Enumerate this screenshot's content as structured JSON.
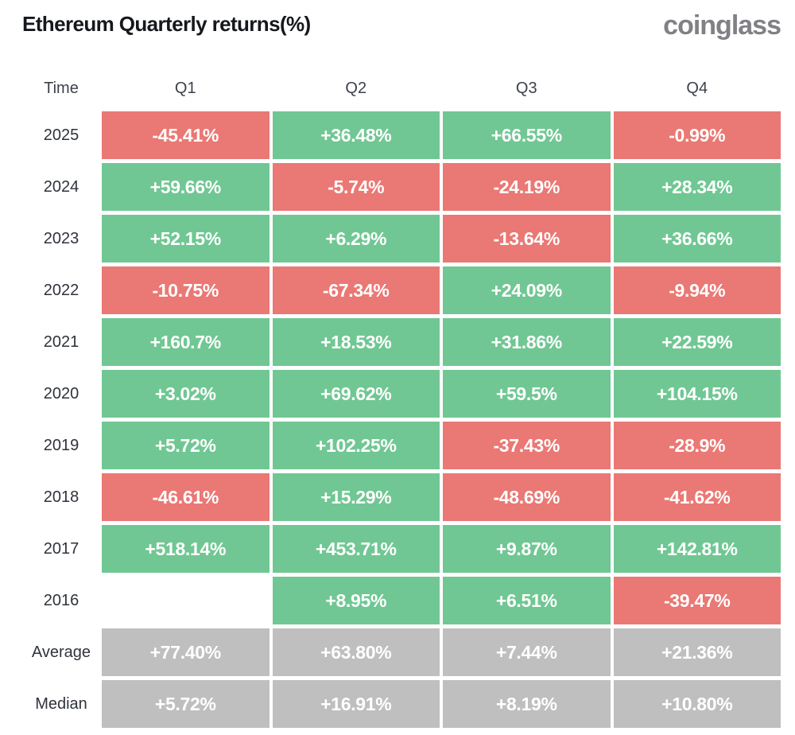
{
  "header": {
    "title": "Ethereum Quarterly returns(%)",
    "logo": "coinglass"
  },
  "colors": {
    "positive": "#70C793",
    "negative": "#EA7874",
    "summary": "#BFBFBF"
  },
  "table": {
    "columns": [
      "Time",
      "Q1",
      "Q2",
      "Q3",
      "Q4"
    ],
    "rows": [
      {
        "label": "2025",
        "cells": [
          {
            "text": "-45.41%",
            "tone": "negative"
          },
          {
            "text": "+36.48%",
            "tone": "positive"
          },
          {
            "text": "+66.55%",
            "tone": "positive"
          },
          {
            "text": "-0.99%",
            "tone": "negative"
          }
        ]
      },
      {
        "label": "2024",
        "cells": [
          {
            "text": "+59.66%",
            "tone": "positive"
          },
          {
            "text": "-5.74%",
            "tone": "negative"
          },
          {
            "text": "-24.19%",
            "tone": "negative"
          },
          {
            "text": "+28.34%",
            "tone": "positive"
          }
        ]
      },
      {
        "label": "2023",
        "cells": [
          {
            "text": "+52.15%",
            "tone": "positive"
          },
          {
            "text": "+6.29%",
            "tone": "positive"
          },
          {
            "text": "-13.64%",
            "tone": "negative"
          },
          {
            "text": "+36.66%",
            "tone": "positive"
          }
        ]
      },
      {
        "label": "2022",
        "cells": [
          {
            "text": "-10.75%",
            "tone": "negative"
          },
          {
            "text": "-67.34%",
            "tone": "negative"
          },
          {
            "text": "+24.09%",
            "tone": "positive"
          },
          {
            "text": "-9.94%",
            "tone": "negative"
          }
        ]
      },
      {
        "label": "2021",
        "cells": [
          {
            "text": "+160.7%",
            "tone": "positive"
          },
          {
            "text": "+18.53%",
            "tone": "positive"
          },
          {
            "text": "+31.86%",
            "tone": "positive"
          },
          {
            "text": "+22.59%",
            "tone": "positive"
          }
        ]
      },
      {
        "label": "2020",
        "cells": [
          {
            "text": "+3.02%",
            "tone": "positive"
          },
          {
            "text": "+69.62%",
            "tone": "positive"
          },
          {
            "text": "+59.5%",
            "tone": "positive"
          },
          {
            "text": "+104.15%",
            "tone": "positive"
          }
        ]
      },
      {
        "label": "2019",
        "cells": [
          {
            "text": "+5.72%",
            "tone": "positive"
          },
          {
            "text": "+102.25%",
            "tone": "positive"
          },
          {
            "text": "-37.43%",
            "tone": "negative"
          },
          {
            "text": "-28.9%",
            "tone": "negative"
          }
        ]
      },
      {
        "label": "2018",
        "cells": [
          {
            "text": "-46.61%",
            "tone": "negative"
          },
          {
            "text": "+15.29%",
            "tone": "positive"
          },
          {
            "text": "-48.69%",
            "tone": "negative"
          },
          {
            "text": "-41.62%",
            "tone": "negative"
          }
        ]
      },
      {
        "label": "2017",
        "cells": [
          {
            "text": "+518.14%",
            "tone": "positive"
          },
          {
            "text": "+453.71%",
            "tone": "positive"
          },
          {
            "text": "+9.87%",
            "tone": "positive"
          },
          {
            "text": "+142.81%",
            "tone": "positive"
          }
        ]
      },
      {
        "label": "2016",
        "cells": [
          {
            "text": "",
            "tone": "empty"
          },
          {
            "text": "+8.95%",
            "tone": "positive"
          },
          {
            "text": "+6.51%",
            "tone": "positive"
          },
          {
            "text": "-39.47%",
            "tone": "negative"
          }
        ]
      },
      {
        "label": "Average",
        "cells": [
          {
            "text": "+77.40%",
            "tone": "summary"
          },
          {
            "text": "+63.80%",
            "tone": "summary"
          },
          {
            "text": "+7.44%",
            "tone": "summary"
          },
          {
            "text": "+21.36%",
            "tone": "summary"
          }
        ]
      },
      {
        "label": "Median",
        "cells": [
          {
            "text": "+5.72%",
            "tone": "summary"
          },
          {
            "text": "+16.91%",
            "tone": "summary"
          },
          {
            "text": "+8.19%",
            "tone": "summary"
          },
          {
            "text": "+10.80%",
            "tone": "summary"
          }
        ]
      }
    ]
  },
  "chart_data": {
    "type": "heatmap",
    "title": "Ethereum Quarterly returns(%)",
    "unit": "%",
    "columns": [
      "Q1",
      "Q2",
      "Q3",
      "Q4"
    ],
    "rows": [
      "2025",
      "2024",
      "2023",
      "2022",
      "2021",
      "2020",
      "2019",
      "2018",
      "2017",
      "2016",
      "Average",
      "Median"
    ],
    "values": [
      [
        -45.41,
        36.48,
        66.55,
        -0.99
      ],
      [
        59.66,
        -5.74,
        -24.19,
        28.34
      ],
      [
        52.15,
        6.29,
        -13.64,
        36.66
      ],
      [
        -10.75,
        -67.34,
        24.09,
        -9.94
      ],
      [
        160.7,
        18.53,
        31.86,
        22.59
      ],
      [
        3.02,
        69.62,
        59.5,
        104.15
      ],
      [
        5.72,
        102.25,
        -37.43,
        -28.9
      ],
      [
        -46.61,
        15.29,
        -48.69,
        -41.62
      ],
      [
        518.14,
        453.71,
        9.87,
        142.81
      ],
      [
        null,
        8.95,
        6.51,
        -39.47
      ],
      [
        77.4,
        63.8,
        7.44,
        21.36
      ],
      [
        5.72,
        16.91,
        8.19,
        10.8
      ]
    ],
    "legend": "green cell = positive return, red cell = negative return, gray cells = Average/Median summary rows, blank = no data (2016 Q1)"
  }
}
